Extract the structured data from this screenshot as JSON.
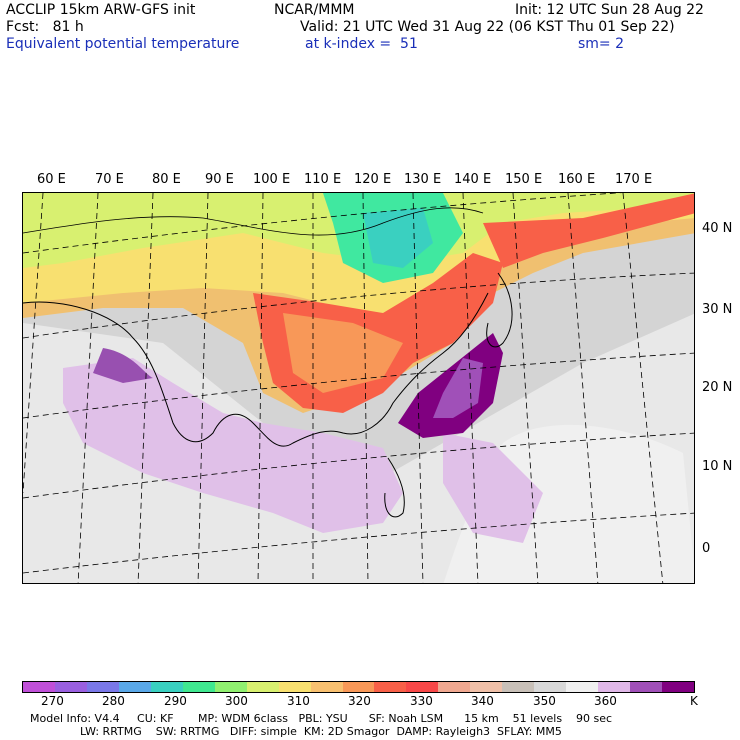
{
  "header": {
    "model": "ACCLIP 15km ARW-GFS init",
    "org": "NCAR/MMM",
    "init": "Init: 12 UTC Sun 28 Aug 22",
    "fcst": "Fcst:   81 h",
    "valid": "Valid: 21 UTC Wed 31 Aug 22 (06 KST Thu 01 Sep 22)",
    "field": "Equivalent potential temperature",
    "level": "at k-index =  51",
    "smooth": "sm= 2"
  },
  "map": {
    "longitude_labels": [
      "60 E",
      "70 E",
      "80 E",
      "90 E",
      "100 E",
      "110 E",
      "120 E",
      "130 E",
      "140 E",
      "150 E",
      "160 E",
      "170 E"
    ],
    "latitude_labels": [
      "40 N",
      "30 N",
      "20 N",
      "10 N",
      "0"
    ]
  },
  "colorbar": {
    "unit": "K",
    "tick_labels": [
      "270",
      "280",
      "290",
      "300",
      "310",
      "320",
      "330",
      "340",
      "350",
      "360"
    ],
    "colors": [
      "#c050d8",
      "#9a60e0",
      "#7a78e8",
      "#5aa8e8",
      "#3ad0c0",
      "#40e890",
      "#90f070",
      "#d8f070",
      "#f8e070",
      "#f8c070",
      "#f89858",
      "#f86048",
      "#f84848",
      "#f0a890",
      "#f0c0a8",
      "#c8c0b8",
      "#d8d8d8",
      "#f0f0f0",
      "#e0b8e8",
      "#a050b8",
      "#800080"
    ]
  },
  "footer": {
    "line1": "Model Info: V4.4     CU: KF       MP: WDM 6class   PBL: YSU      SF: Noah LSM      15 km    51 levels    90 sec",
    "line2": "LW: RRTMG    SW: RRTMG   DIFF: simple  KM: 2D Smagor  DAMP: Rayleigh3  SFLAY: MM5"
  }
}
